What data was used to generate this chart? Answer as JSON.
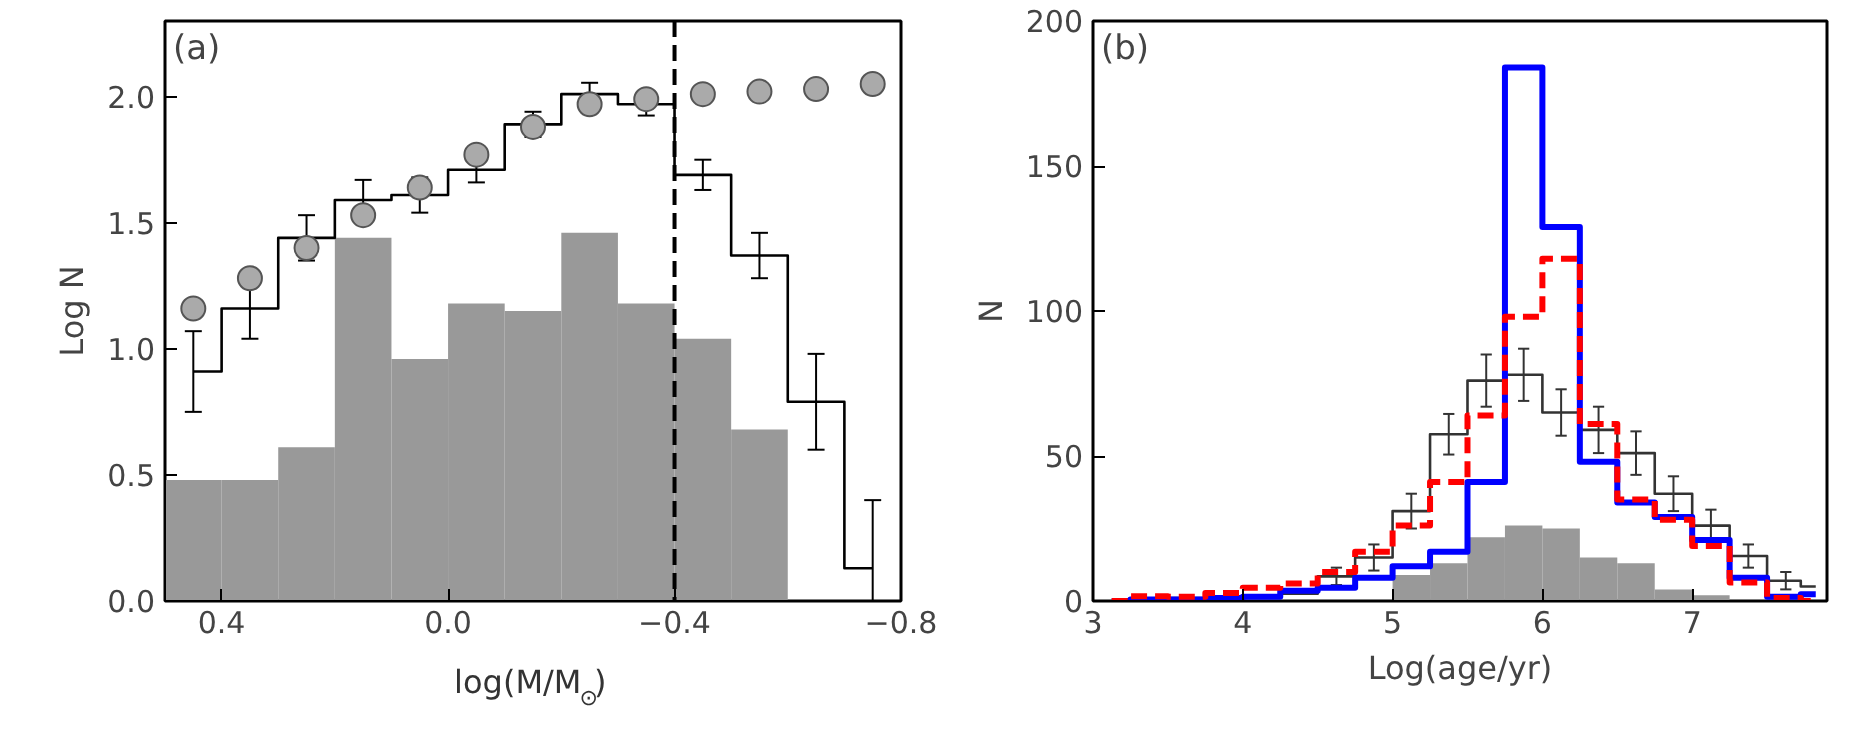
{
  "chart_data": [
    {
      "type": "histogram",
      "xlabel": "log(M/M$_{⊙}$)",
      "ylabel": "Log N",
      "annotations": [
        "(a)"
      ],
      "bins": [
        0.5,
        0.4,
        0.3,
        0.2,
        0.1,
        0.0,
        -0.1,
        -0.2,
        -0.3,
        -0.4,
        -0.5,
        -0.6
      ],
      "series": [
        {
          "type": "histogram",
          "color": "#999999",
          "values": [
            0.48,
            0.48,
            0.61,
            1.44,
            0.96,
            1.18,
            1.15,
            1.46,
            1.18,
            1.04,
            0.68
          ]
        },
        {
          "type": "step",
          "color": "#000000",
          "x": [
            0.45,
            0.35,
            0.25,
            0.15,
            0.05,
            -0.05,
            -0.15,
            -0.25,
            -0.35,
            -0.45,
            -0.55,
            -0.65,
            -0.75
          ],
          "values": [
            0.91,
            1.16,
            1.44,
            1.59,
            1.61,
            1.71,
            1.89,
            2.01,
            1.97,
            1.69,
            1.37,
            0.79,
            0.13
          ],
          "errors": [
            0.16,
            0.12,
            0.09,
            0.08,
            0.07,
            0.05,
            0.05,
            0.045,
            0.045,
            0.06,
            0.09,
            0.19,
            [
              0,
              0.4
            ]
          ]
        },
        {
          "type": "scatter",
          "color": "#aaaaaa",
          "marker": "circle",
          "x": [
            0.45,
            0.35,
            0.25,
            0.15,
            0.05,
            -0.05,
            -0.15,
            -0.25,
            -0.35,
            -0.45,
            -0.55,
            -0.65,
            -0.75
          ],
          "values": [
            1.16,
            1.28,
            1.4,
            1.53,
            1.64,
            1.77,
            1.88,
            1.97,
            1.99,
            2.01,
            2.02,
            2.03,
            2.05
          ]
        }
      ],
      "ref_lines": [
        {
          "axis": "x",
          "value": -0.4,
          "color": "#000000",
          "line_style": "dashed"
        }
      ],
      "xlim": [
        0.5,
        -0.8
      ],
      "ylim": [
        0,
        2.3
      ],
      "xticks": [
        {
          "value": 0.4,
          "label": "0.4"
        },
        {
          "value": 0.0,
          "label": "0.0"
        },
        {
          "value": -0.4,
          "label": "−0.4"
        },
        {
          "value": -0.8,
          "label": "−0.8"
        }
      ],
      "yticks": [
        {
          "value": 0,
          "label": "0.0"
        },
        {
          "value": 0.5,
          "label": "0.5"
        },
        {
          "value": 1,
          "label": "1.0"
        },
        {
          "value": 1.5,
          "label": "1.5"
        },
        {
          "value": 2,
          "label": "2.0"
        }
      ],
      "grid": false
    },
    {
      "type": "histogram",
      "xlabel": "Log(age/yr)",
      "ylabel": "N",
      "annotations": [
        "(b)"
      ],
      "bins": [
        5.0,
        5.25,
        5.5,
        5.75,
        6.0,
        6.25,
        6.5,
        6.75,
        7.0,
        7.25
      ],
      "series": [
        {
          "type": "histogram",
          "color": "#999999",
          "values": [
            9,
            13,
            22,
            26,
            25,
            15,
            13,
            4,
            2
          ]
        },
        {
          "type": "step",
          "color": "#333333",
          "x": [
            3.125,
            3.375,
            3.625,
            3.875,
            4.125,
            4.375,
            4.625,
            4.875,
            5.125,
            5.375,
            5.625,
            5.875,
            6.125,
            6.375,
            6.625,
            6.875,
            7.125,
            7.375,
            7.625,
            7.825
          ],
          "values": [
            0,
            0,
            1,
            1,
            2,
            2.5,
            8.5,
            15,
            31,
            57.5,
            76,
            78,
            65,
            59,
            51,
            37,
            26,
            15.5,
            7,
            5
          ],
          "errors": [
            null,
            null,
            null,
            null,
            null,
            null,
            3,
            4.5,
            6,
            7,
            9,
            9,
            8,
            8,
            7.5,
            6,
            5.5,
            4,
            3,
            null
          ]
        },
        {
          "type": "step",
          "color": "#0000ff",
          "line_style": "solid",
          "x": [
            3.125,
            3.375,
            3.625,
            3.875,
            4.125,
            4.375,
            4.625,
            4.875,
            5.125,
            5.375,
            5.625,
            5.875,
            6.125,
            6.375,
            6.625,
            6.875,
            7.125,
            7.375,
            7.625,
            7.825
          ],
          "values": [
            0,
            0.5,
            0.5,
            1,
            1.5,
            3.5,
            4.6,
            8,
            12,
            17,
            41,
            184,
            129,
            48,
            34,
            29,
            21,
            8,
            1.5,
            2.3
          ]
        },
        {
          "type": "step",
          "color": "#ff0000",
          "line_style": "dashed",
          "x": [
            3.125,
            3.375,
            3.625,
            3.875,
            4.125,
            4.375,
            4.625,
            4.875,
            5.125,
            5.375,
            5.625,
            5.875,
            6.125,
            6.375,
            6.625,
            6.875,
            7.125,
            7.375,
            7.625,
            7.825
          ],
          "values": [
            0,
            1.6,
            1.5,
            2.8,
            4.6,
            6,
            10,
            17,
            26,
            41,
            64,
            98,
            118,
            61,
            35,
            28,
            19,
            6.4,
            1,
            0
          ]
        }
      ],
      "xlim": [
        3,
        7.9
      ],
      "ylim": [
        0,
        200
      ],
      "xticks": [
        3,
        4,
        5,
        6,
        7
      ],
      "yticks": [
        0,
        50,
        100,
        150,
        200
      ],
      "grid": false
    }
  ]
}
